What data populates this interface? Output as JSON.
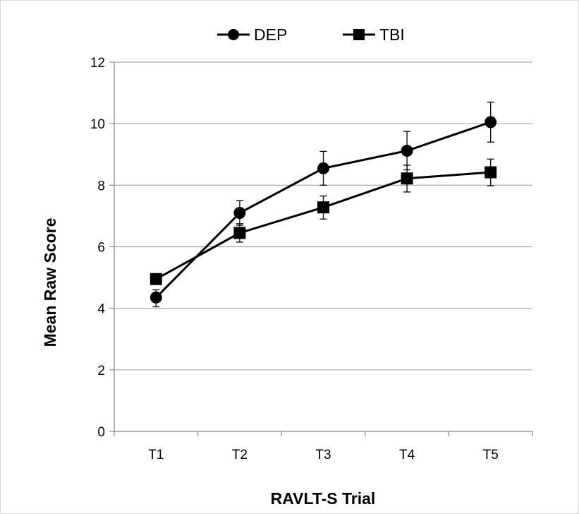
{
  "chart_data": {
    "type": "line",
    "title": "",
    "xlabel": "RAVLT-S Trial",
    "ylabel": "Mean Raw Score",
    "categories": [
      "T1",
      "T2",
      "T3",
      "T4",
      "T5"
    ],
    "ylim": [
      0,
      12
    ],
    "yticks": [
      0,
      2,
      4,
      6,
      8,
      10,
      12
    ],
    "grid": true,
    "legend_position": "top",
    "series": [
      {
        "name": "DEP",
        "marker": "circle",
        "color": "#000000",
        "values": [
          4.35,
          7.1,
          8.55,
          9.12,
          10.05
        ],
        "error_low": [
          4.05,
          6.7,
          8.0,
          8.5,
          9.4
        ],
        "error_high": [
          4.6,
          7.5,
          9.1,
          9.75,
          10.7
        ]
      },
      {
        "name": "TBI",
        "marker": "square",
        "color": "#000000",
        "values": [
          4.95,
          6.45,
          7.28,
          8.22,
          8.42
        ],
        "error_low": [
          4.78,
          6.15,
          6.9,
          7.78,
          7.98
        ],
        "error_high": [
          5.12,
          6.75,
          7.65,
          8.65,
          8.85
        ]
      }
    ]
  }
}
